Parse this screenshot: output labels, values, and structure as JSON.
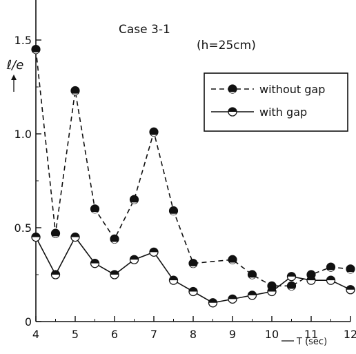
{
  "chart_data": {
    "type": "line",
    "title": "Case 3-1",
    "subtitle": "(h=25cm)",
    "xlabel": "T (sec)",
    "ylabel": "ℓ/e",
    "xlim": [
      4,
      12
    ],
    "ylim": [
      0,
      1.6
    ],
    "xticks": [
      4,
      5,
      6,
      7,
      8,
      9,
      10,
      11,
      12
    ],
    "yticks": [
      0,
      0.5,
      1.0,
      1.5
    ],
    "ytick_labels": [
      "0",
      "0.5",
      "1.0",
      "1.5"
    ],
    "grid": false,
    "legend_position": "upper-right",
    "series": [
      {
        "name": "without gap",
        "style": "dashed",
        "marker": "half-filled-dark",
        "x": [
          4,
          4.5,
          5,
          5.5,
          6,
          6.5,
          7,
          7.5,
          8,
          9,
          9.5,
          10,
          10.5,
          11,
          11.5,
          12
        ],
        "y": [
          1.45,
          0.47,
          1.23,
          0.6,
          0.44,
          0.65,
          1.01,
          0.59,
          0.31,
          0.33,
          0.25,
          0.19,
          0.19,
          0.25,
          0.29,
          0.28
        ]
      },
      {
        "name": "with gap",
        "style": "solid",
        "marker": "half-filled-light",
        "x": [
          4,
          4.5,
          5,
          5.5,
          6,
          6.5,
          7,
          7.5,
          8,
          8.5,
          9,
          9.5,
          10,
          10.5,
          11,
          11.5,
          12
        ],
        "y": [
          0.45,
          0.25,
          0.45,
          0.31,
          0.25,
          0.33,
          0.37,
          0.22,
          0.16,
          0.1,
          0.12,
          0.14,
          0.16,
          0.24,
          0.22,
          0.22,
          0.17
        ]
      }
    ]
  }
}
